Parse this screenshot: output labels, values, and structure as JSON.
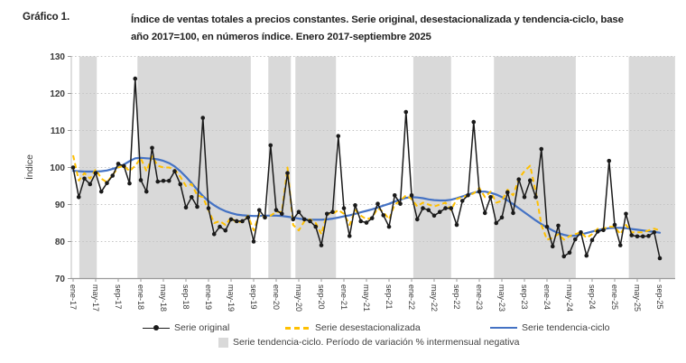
{
  "header": {
    "figure_label": "Gráfico 1.",
    "title_line1": "Índice de ventas totales a precios constantes. Serie original, desestacionalizada y tendencia-ciclo, base",
    "title_line2": "año 2017=100, en números índice. Enero 2017-septiembre 2025"
  },
  "chart_data": {
    "type": "line",
    "title": "Índice de ventas totales a precios constantes. Serie original, desestacionalizada y tendencia-ciclo, base año 2017=100, en números índice. Enero 2017-septiembre 2025",
    "xlabel": "",
    "ylabel": "Índice",
    "ylim": [
      70,
      130
    ],
    "y_ticks": [
      70,
      80,
      90,
      100,
      110,
      120,
      130
    ],
    "grid": "horizontal-dotted",
    "legend_position": "bottom",
    "x_start": "ene-17",
    "x_end": "sep-25",
    "n_points": 105,
    "x_tick_step": 4,
    "x_tick_labels": [
      "ene-17",
      "may-17",
      "sep-17",
      "ene-18",
      "may-18",
      "sep-18",
      "ene-19",
      "may-19",
      "sep-19",
      "ene-20",
      "may-20",
      "sep-20",
      "ene-21",
      "may-21",
      "sep-21",
      "ene-22",
      "may-22",
      "sep-22",
      "ene-23",
      "may-23",
      "sep-23",
      "ene-24",
      "may-24",
      "sep-24",
      "ene-25",
      "may-25",
      "sep-25"
    ],
    "series": [
      {
        "name": "Serie original",
        "color": "#1a1a1a",
        "style": "solid-with-markers",
        "values": [
          100.0,
          92.0,
          97.0,
          95.5,
          98.5,
          93.5,
          95.8,
          97.8,
          101.0,
          100.4,
          95.7,
          124.0,
          96.6,
          93.5,
          105.3,
          96.2,
          96.4,
          96.4,
          99.0,
          95.5,
          89.2,
          92.0,
          89.4,
          113.4,
          89.0,
          82.0,
          84.0,
          83.0,
          86.0,
          85.5,
          85.5,
          86.5,
          80.0,
          88.5,
          86.5,
          106.0,
          88.5,
          87.5,
          98.5,
          86.0,
          88.0,
          86.0,
          85.5,
          84.0,
          79.0,
          87.5,
          88.0,
          108.5,
          89.0,
          81.5,
          89.8,
          85.5,
          85.1,
          86.3,
          90.2,
          87.1,
          84.0,
          92.5,
          90.2,
          115.0,
          92.5,
          86.0,
          89.0,
          88.5,
          87.0,
          88.0,
          89.0,
          89.0,
          84.5,
          91.0,
          92.5,
          112.3,
          93.5,
          87.7,
          92.0,
          85.0,
          86.5,
          93.3,
          87.7,
          96.8,
          92.0,
          96.5,
          92.0,
          105.0,
          84.0,
          78.7,
          84.3,
          76.0,
          77.0,
          80.6,
          82.5,
          76.2,
          80.4,
          82.7,
          83.1,
          101.8,
          84.5,
          79.0,
          87.5,
          81.7,
          81.4,
          81.4,
          81.5,
          82.5,
          75.5
        ]
      },
      {
        "name": "Serie desestacionalizada",
        "color": "#ffc000",
        "style": "dashed",
        "values": [
          103.3,
          96.5,
          98.5,
          97.0,
          99.5,
          97.0,
          96.0,
          98.0,
          100.0,
          100.5,
          99.0,
          100.5,
          102.5,
          99.0,
          103.0,
          100.5,
          100.0,
          100.0,
          99.5,
          97.5,
          95.0,
          95.5,
          92.5,
          92.0,
          88.5,
          85.0,
          85.5,
          84.5,
          86.5,
          85.0,
          85.5,
          87.0,
          83.0,
          87.5,
          86.5,
          87.0,
          88.0,
          88.0,
          100.0,
          84.5,
          83.0,
          85.5,
          86.0,
          85.0,
          82.0,
          87.5,
          87.5,
          88.5,
          87.5,
          84.5,
          88.5,
          87.0,
          86.0,
          86.5,
          89.0,
          88.0,
          86.0,
          90.0,
          91.0,
          92.5,
          91.5,
          89.5,
          90.5,
          90.0,
          89.5,
          90.0,
          90.5,
          88.5,
          91.5,
          92.0,
          92.5,
          93.0,
          94.5,
          92.0,
          93.5,
          90.5,
          91.0,
          94.0,
          92.5,
          97.0,
          99.0,
          100.5,
          93.5,
          84.5,
          80.5,
          81.0,
          82.0,
          80.5,
          81.5,
          82.0,
          82.5,
          81.0,
          82.0,
          83.5,
          83.5,
          84.0,
          84.0,
          82.0,
          84.5,
          82.5,
          82.5,
          82.5,
          83.0,
          83.5,
          83.0
        ]
      },
      {
        "name": "Serie tendencia-ciclo",
        "color": "#4472c4",
        "style": "solid",
        "values": [
          99.1,
          99.0,
          98.9,
          98.9,
          98.9,
          99.0,
          99.2,
          99.6,
          100.1,
          100.8,
          101.7,
          102.5,
          102.6,
          102.5,
          102.4,
          102.2,
          101.8,
          101.2,
          100.3,
          99.0,
          97.5,
          95.8,
          94.0,
          92.3,
          90.9,
          89.8,
          88.9,
          88.2,
          87.7,
          87.3,
          87.1,
          87.0,
          86.9,
          86.9,
          87.0,
          87.0,
          87.0,
          86.9,
          86.7,
          86.5,
          86.2,
          86.0,
          85.9,
          85.9,
          85.9,
          86.0,
          86.2,
          86.5,
          86.8,
          87.1,
          87.5,
          87.9,
          88.3,
          88.7,
          89.2,
          89.7,
          90.2,
          90.8,
          91.3,
          91.8,
          92.0,
          91.9,
          91.7,
          91.4,
          91.2,
          91.1,
          91.1,
          91.3,
          91.7,
          92.2,
          92.7,
          93.2,
          93.5,
          93.5,
          93.2,
          92.7,
          92.0,
          91.1,
          90.1,
          89.0,
          87.9,
          86.8,
          85.7,
          84.7,
          83.8,
          83.0,
          82.3,
          81.8,
          81.5,
          81.6,
          81.9,
          82.3,
          82.7,
          83.1,
          83.4,
          83.6,
          83.7,
          83.7,
          83.6,
          83.4,
          83.2,
          83.0,
          82.8,
          82.6,
          82.4
        ]
      }
    ],
    "negative_variation_bands": {
      "label": "Serie tendencia-ciclo. Período de variación % intermensual negativa",
      "color": "#d9d9d9",
      "ranges_month_index": [
        [
          1.1,
          4.2
        ],
        [
          11.4,
          31.5
        ],
        [
          34.6,
          38.6
        ],
        [
          39.4,
          46.6
        ],
        [
          60.3,
          67.0
        ],
        [
          74.6,
          89.1
        ],
        [
          98.5,
          106.7
        ]
      ]
    }
  }
}
